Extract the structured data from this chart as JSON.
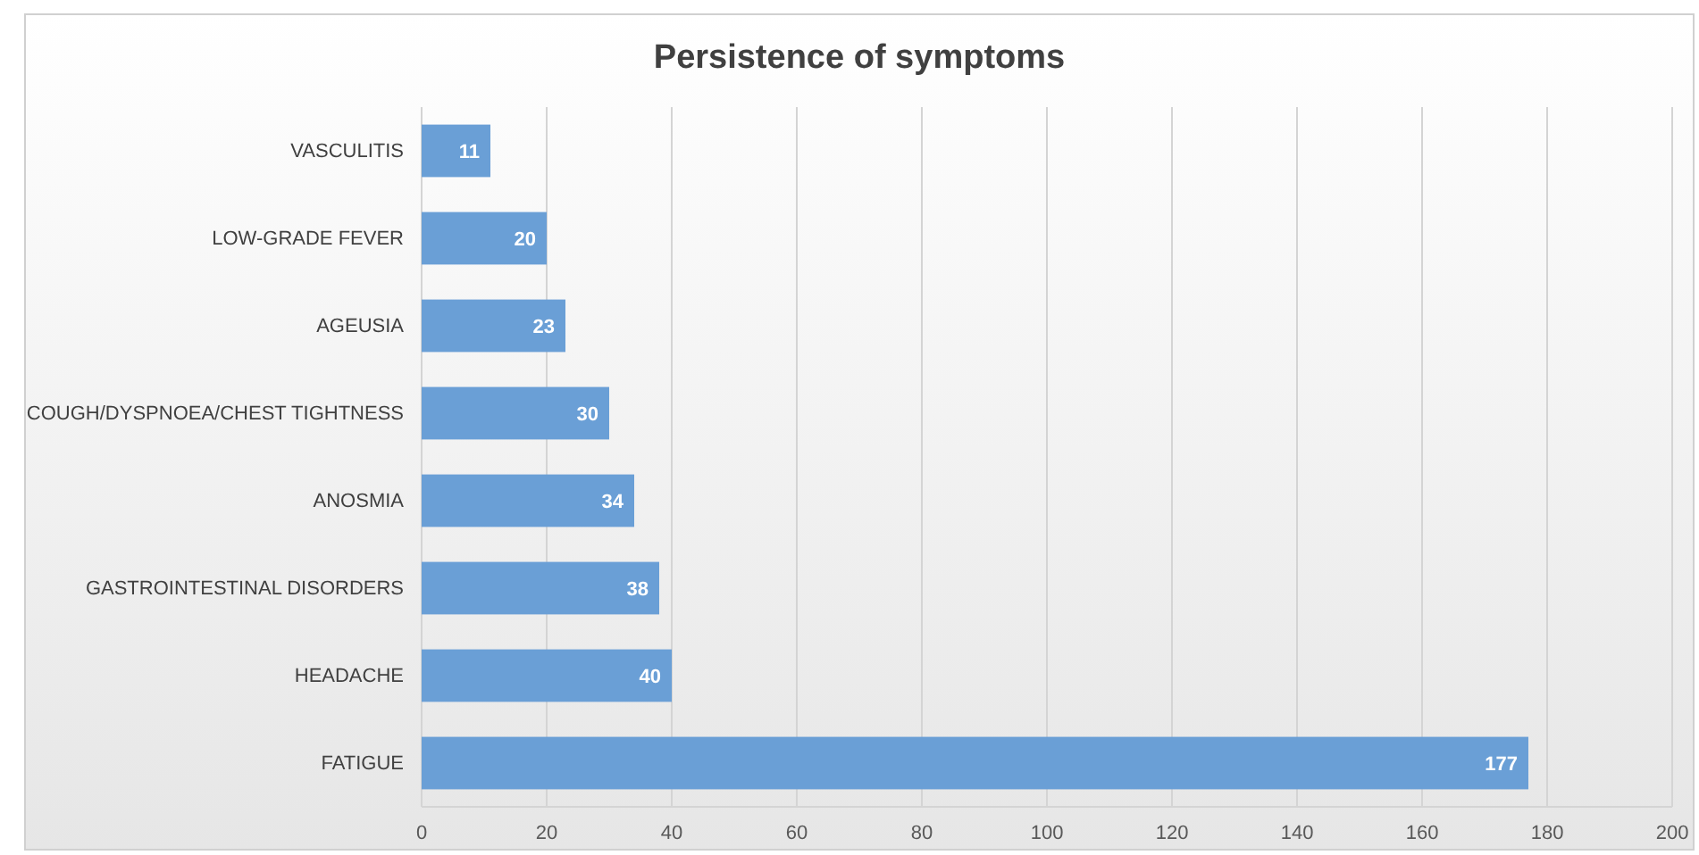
{
  "chart_data": {
    "type": "bar",
    "orientation": "horizontal",
    "title": "Persistence of symptoms",
    "categories": [
      "VASCULITIS",
      "LOW-GRADE FEVER",
      "AGEUSIA",
      "COUGH/DYSPNOEA/CHEST TIGHTNESS",
      "ANOSMIA",
      "GASTROINTESTINAL DISORDERS",
      "HEADACHE",
      "FATIGUE"
    ],
    "values": [
      11,
      20,
      23,
      30,
      34,
      38,
      40,
      177
    ],
    "color": "#6a9fd6",
    "xlim": [
      0,
      200
    ],
    "xticks": [
      0,
      20,
      40,
      60,
      80,
      100,
      120,
      140,
      160,
      180,
      200
    ],
    "grid": "x",
    "data_labels": true
  }
}
